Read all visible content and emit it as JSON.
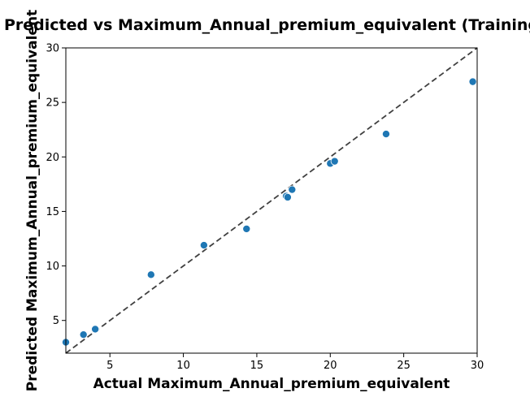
{
  "chart_data": {
    "type": "scatter",
    "title": "Predicted vs Maximum_Annual_premium_equivalent (Training",
    "xlabel": "Actual Maximum_Annual_premium_equivalent",
    "ylabel": "Predicted Maximum_Annual_premium_equivalent",
    "xlim": [
      2,
      30
    ],
    "ylim": [
      2,
      30
    ],
    "xticks": [
      5,
      10,
      15,
      20,
      25,
      30
    ],
    "yticks": [
      5,
      10,
      15,
      20,
      25,
      30
    ],
    "grid": false,
    "point_color": "#1f77b4",
    "reference_line": {
      "style": "dashed",
      "color": "#404040",
      "from": [
        2,
        2
      ],
      "to": [
        30,
        30
      ]
    },
    "points": [
      {
        "x": 2.0,
        "y": 3.0
      },
      {
        "x": 3.2,
        "y": 3.7
      },
      {
        "x": 4.0,
        "y": 4.2
      },
      {
        "x": 7.8,
        "y": 9.2
      },
      {
        "x": 11.4,
        "y": 11.9
      },
      {
        "x": 14.3,
        "y": 13.4
      },
      {
        "x": 17.0,
        "y": 16.4
      },
      {
        "x": 17.1,
        "y": 16.3
      },
      {
        "x": 17.4,
        "y": 17.0
      },
      {
        "x": 20.0,
        "y": 19.4
      },
      {
        "x": 20.3,
        "y": 19.6
      },
      {
        "x": 23.8,
        "y": 22.1
      },
      {
        "x": 29.7,
        "y": 26.9
      }
    ]
  }
}
